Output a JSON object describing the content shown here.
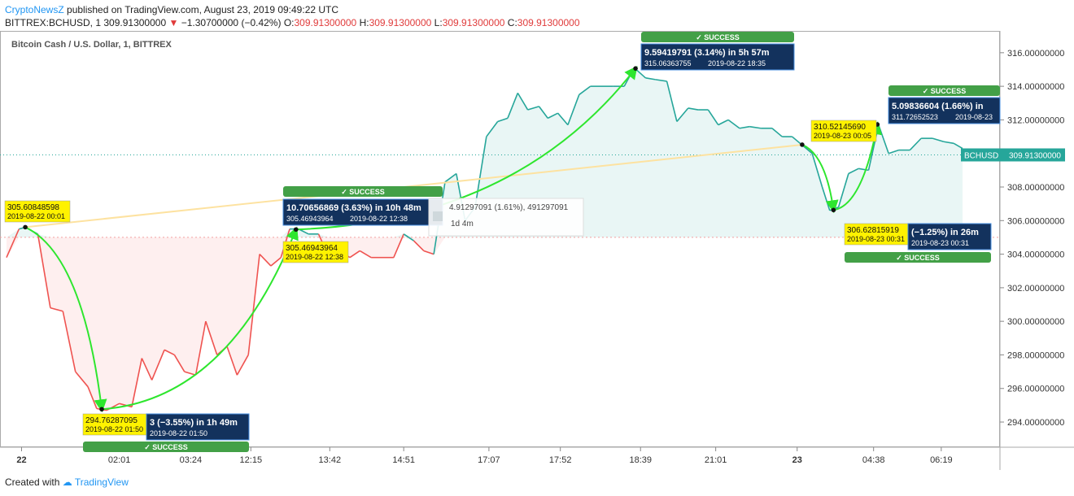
{
  "header": {
    "author": "CryptoNewsZ",
    "published": "published on TradingView.com, August 23, 2019 09:49:22 UTC"
  },
  "ticker": {
    "symbol": "BITTREX:BCHUSD, 1",
    "price": "309.91300000",
    "arrow": "▼",
    "change": "−1.30700000 (−0.42%)",
    "o_label": "O:",
    "o": "309.91300000",
    "h_label": "H:",
    "h": "309.91300000",
    "l_label": "L:",
    "l": "309.91300000",
    "c_label": "C:",
    "c": "309.91300000"
  },
  "footer": {
    "created": "Created with",
    "brand": "TradingView"
  },
  "colors": {
    "up": "#26a69a",
    "down": "#ef5350",
    "arrow": "#2ee62e",
    "trend": "#fde2a0",
    "label_bg": "#fff200",
    "box_bg": "#13325d",
    "success": "#43a047"
  },
  "chart_data": {
    "type": "line",
    "title": "Bitcoin Cash / U.S. Dollar, 1, BITTREX",
    "ylim": [
      292.5,
      317.3
    ],
    "yticks": [
      316,
      314,
      312,
      310,
      308,
      306,
      304,
      302,
      300,
      298,
      296,
      294
    ],
    "ytick_labels": [
      "316.00000000",
      "314.00000000",
      "312.00000000",
      "310.00000000",
      "308.00000000",
      "306.00000000",
      "304.00000000",
      "302.00000000",
      "300.00000000",
      "298.00000000",
      "296.00000000",
      "294.00000000"
    ],
    "xlim": [
      0,
      86
    ],
    "xticks": [
      {
        "x": 1.2,
        "label": "22",
        "bold": true
      },
      {
        "x": 9,
        "label": "02:01"
      },
      {
        "x": 14.7,
        "label": "03:24"
      },
      {
        "x": 19.5,
        "label": "12:15"
      },
      {
        "x": 25.8,
        "label": "13:42"
      },
      {
        "x": 31.7,
        "label": "14:51"
      },
      {
        "x": 38.5,
        "label": "17:07"
      },
      {
        "x": 44.2,
        "label": "17:52"
      },
      {
        "x": 50.6,
        "label": "18:39"
      },
      {
        "x": 56.6,
        "label": "21:01"
      },
      {
        "x": 63.1,
        "label": "23",
        "bold": true
      },
      {
        "x": 69.2,
        "label": "04:38"
      },
      {
        "x": 74.6,
        "label": "06:19"
      }
    ],
    "baseline": 305,
    "current_price": 309.913,
    "current_label": "BCHUSD",
    "current_value": "309.91300000",
    "series": [
      {
        "x": 0,
        "y": 303.8
      },
      {
        "x": 1,
        "y": 305.5
      },
      {
        "x": 1.5,
        "y": 305.6
      },
      {
        "x": 2.5,
        "y": 305.2
      },
      {
        "x": 3.5,
        "y": 300.8
      },
      {
        "x": 4.5,
        "y": 300.6
      },
      {
        "x": 5.5,
        "y": 297.0
      },
      {
        "x": 6.5,
        "y": 296.1
      },
      {
        "x": 7.2,
        "y": 294.8
      },
      {
        "x": 8,
        "y": 294.7
      },
      {
        "x": 9,
        "y": 295.1
      },
      {
        "x": 10,
        "y": 294.9
      },
      {
        "x": 10.8,
        "y": 297.8
      },
      {
        "x": 11.6,
        "y": 296.5
      },
      {
        "x": 12.6,
        "y": 298.3
      },
      {
        "x": 13.4,
        "y": 298.0
      },
      {
        "x": 14.2,
        "y": 297.0
      },
      {
        "x": 15.1,
        "y": 296.8
      },
      {
        "x": 15.9,
        "y": 300.0
      },
      {
        "x": 16.8,
        "y": 298.0
      },
      {
        "x": 17.6,
        "y": 298.5
      },
      {
        "x": 18.4,
        "y": 296.8
      },
      {
        "x": 19.3,
        "y": 298.0
      },
      {
        "x": 20.2,
        "y": 304.0
      },
      {
        "x": 21.1,
        "y": 303.3
      },
      {
        "x": 21.9,
        "y": 303.8
      },
      {
        "x": 22.6,
        "y": 305.5
      },
      {
        "x": 23.3,
        "y": 305.5
      },
      {
        "x": 24.1,
        "y": 305.2
      },
      {
        "x": 24.9,
        "y": 305.2
      },
      {
        "x": 25.7,
        "y": 303.9
      },
      {
        "x": 26.6,
        "y": 304.2
      },
      {
        "x": 27.4,
        "y": 303.8
      },
      {
        "x": 28.2,
        "y": 304.2
      },
      {
        "x": 29.1,
        "y": 303.8
      },
      {
        "x": 30,
        "y": 303.8
      },
      {
        "x": 30.9,
        "y": 303.8
      },
      {
        "x": 31.7,
        "y": 305.2
      },
      {
        "x": 32.5,
        "y": 304.8
      },
      {
        "x": 33.3,
        "y": 304.2
      },
      {
        "x": 34.1,
        "y": 304.0
      },
      {
        "x": 35,
        "y": 308.3
      },
      {
        "x": 35.9,
        "y": 308.8
      },
      {
        "x": 36.6,
        "y": 306.0
      },
      {
        "x": 37.4,
        "y": 306.8
      },
      {
        "x": 38.3,
        "y": 311.0
      },
      {
        "x": 39.2,
        "y": 311.9
      },
      {
        "x": 40,
        "y": 312.1
      },
      {
        "x": 40.8,
        "y": 313.6
      },
      {
        "x": 41.6,
        "y": 312.6
      },
      {
        "x": 42.5,
        "y": 312.8
      },
      {
        "x": 43.2,
        "y": 312.1
      },
      {
        "x": 44,
        "y": 312.4
      },
      {
        "x": 44.8,
        "y": 311.7
      },
      {
        "x": 45.7,
        "y": 313.5
      },
      {
        "x": 46.6,
        "y": 314.0
      },
      {
        "x": 47.5,
        "y": 314.0
      },
      {
        "x": 48.4,
        "y": 314.0
      },
      {
        "x": 49.3,
        "y": 314.0
      },
      {
        "x": 50.1,
        "y": 315.1
      },
      {
        "x": 51,
        "y": 314.5
      },
      {
        "x": 51.8,
        "y": 314.4
      },
      {
        "x": 52.7,
        "y": 314.3
      },
      {
        "x": 53.5,
        "y": 311.9
      },
      {
        "x": 54.4,
        "y": 312.7
      },
      {
        "x": 55.2,
        "y": 312.6
      },
      {
        "x": 56,
        "y": 312.6
      },
      {
        "x": 56.8,
        "y": 311.7
      },
      {
        "x": 57.6,
        "y": 312.0
      },
      {
        "x": 58.5,
        "y": 311.5
      },
      {
        "x": 59.3,
        "y": 311.6
      },
      {
        "x": 60.2,
        "y": 311.5
      },
      {
        "x": 61.1,
        "y": 311.5
      },
      {
        "x": 61.9,
        "y": 311.0
      },
      {
        "x": 62.7,
        "y": 311.0
      },
      {
        "x": 63.5,
        "y": 310.5
      },
      {
        "x": 64.3,
        "y": 310.0
      },
      {
        "x": 65.1,
        "y": 308.0
      },
      {
        "x": 65.7,
        "y": 306.6
      },
      {
        "x": 66.4,
        "y": 306.8
      },
      {
        "x": 67.2,
        "y": 308.8
      },
      {
        "x": 68,
        "y": 309.1
      },
      {
        "x": 68.8,
        "y": 309.0
      },
      {
        "x": 69.6,
        "y": 311.7
      },
      {
        "x": 70.4,
        "y": 310.0
      },
      {
        "x": 71.2,
        "y": 310.2
      },
      {
        "x": 72.1,
        "y": 310.2
      },
      {
        "x": 73,
        "y": 310.9
      },
      {
        "x": 73.9,
        "y": 310.9
      },
      {
        "x": 74.8,
        "y": 310.7
      },
      {
        "x": 75.6,
        "y": 310.6
      },
      {
        "x": 76.3,
        "y": 310.3
      }
    ],
    "trendline": {
      "from": {
        "x": 1.5,
        "y": 305.60848598
      },
      "to": {
        "x": 63.5,
        "y": 310.5214569
      }
    },
    "moves": [
      {
        "from": {
          "x": 1.5,
          "y": 305.60848598
        },
        "to": {
          "x": 7.6,
          "y": 294.76287095
        }
      },
      {
        "from": {
          "x": 7.6,
          "y": 294.76287095
        },
        "to": {
          "x": 23.1,
          "y": 305.46943964
        }
      },
      {
        "from": {
          "x": 23.1,
          "y": 305.46943964
        },
        "to": {
          "x": 50.2,
          "y": 315.06363755
        }
      },
      {
        "from": {
          "x": 63.5,
          "y": 310.5214569
        },
        "to": {
          "x": 66.0,
          "y": 306.62815919
        }
      },
      {
        "from": {
          "x": 66.0,
          "y": 306.62815919
        },
        "to": {
          "x": 69.5,
          "y": 311.72652523
        }
      }
    ],
    "points": [
      {
        "price": "305.60848598",
        "time": "2019-08-22 00:01"
      },
      {
        "price": "294.76287095",
        "time": "2019-08-22 01:50"
      },
      {
        "price": "305.46943964",
        "time": "2019-08-22 12:38"
      },
      {
        "price": "310.52145690",
        "time": "2019-08-23 00:05"
      },
      {
        "price": "306.62815919",
        "time": "2019-08-23 00:31"
      }
    ],
    "annotations": [
      {
        "line1": "3 (−3.55%) in 1h 49m",
        "line2": "2019-08-22 01:50"
      },
      {
        "line1": "10.70656869 (3.63%) in 10h 48m",
        "line2a": "305.46943964",
        "line2b": "2019-08-22  12:38"
      },
      {
        "line1": "9.59419791 (3.14%) in 5h 57m",
        "line2a": "315.06363755",
        "line2b": "2019-08-22  18:35"
      },
      {
        "line1": "5.09836604 (1.66%) in",
        "line2a": "311.72652523",
        "line2b": "2019-08-23"
      },
      {
        "line1": "(−1.25%) in 26m",
        "line2": "2019-08-23  00:31"
      }
    ],
    "success_label": "✓ SUCCESS",
    "tooltip": {
      "line1": "4.91297091 (1.61%), 491297091",
      "line2": "1d 4m"
    }
  }
}
